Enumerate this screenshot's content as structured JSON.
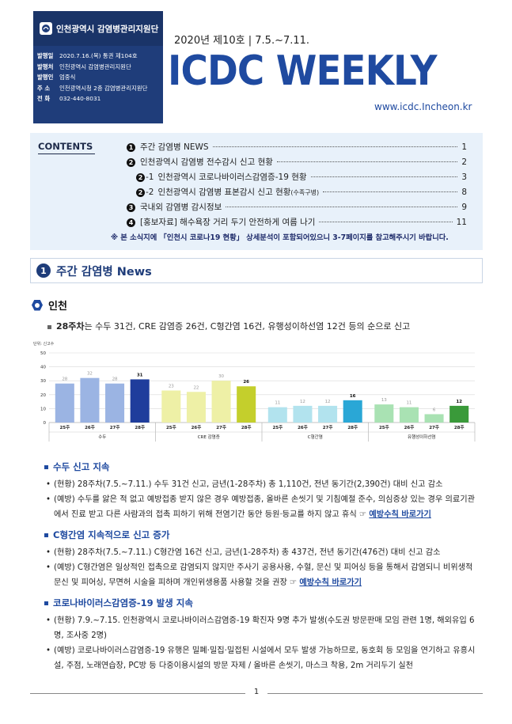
{
  "header": {
    "org_name": "인천광역시 감염병관리지원단",
    "meta": [
      {
        "k": "발행일",
        "v": "2020.7.16.(목) 통권 제104호"
      },
      {
        "k": "발행처",
        "v": "인천광역시 감염병관리지원단"
      },
      {
        "k": "발행인",
        "v": "엄중식"
      },
      {
        "k": "주  소",
        "v": "인천광역시청 2층 감염병관리지원단"
      },
      {
        "k": "전  화",
        "v": "032-440-8031"
      }
    ],
    "issue": "2020년 제10호 | 7.5.~7.11.",
    "title": "ICDC WEEKLY",
    "url": "www.icdc.Incheon.kr"
  },
  "contents": {
    "label": "CONTENTS",
    "items": [
      {
        "num": "1",
        "text": "주간 감염병 NEWS",
        "page": "1"
      },
      {
        "num": "2",
        "text": "인천광역시 감염병 전수감시 신고 현황",
        "page": "2"
      },
      {
        "num": "2",
        "sub": "-1",
        "text": "인천광역시 코로나바이러스감염증-19 현황",
        "page": "3"
      },
      {
        "num": "2",
        "sub": "-2",
        "text": "인천광역시 감염병 표본감시 신고 현황",
        "small": "(수족구병)",
        "page": "8"
      },
      {
        "num": "3",
        "text": "국내외 감염병 감시정보",
        "page": "9"
      },
      {
        "num": "4",
        "text": "[홍보자료] 해수욕장 거리 두기 안전하게 여름 나기",
        "page": "11"
      }
    ],
    "note": "※ 본 소식지에 「인천시 코로나19 현황」 상세분석이 포함되어있으니 3-7페이지를 참고해주시기 바랍니다."
  },
  "section1": {
    "num": "1",
    "title": "주간 감염병 News",
    "region": "인천",
    "summary_bold": "28주차",
    "summary_rest": "는 수두 31건, CRE 감염증 26건, C형간염 16건, 유행성이하선염 12건 등의 순으로 신고"
  },
  "chart_data": {
    "type": "bar",
    "ylabel": "단위: 신고수",
    "ylim": [
      0,
      50
    ],
    "yticks": [
      0,
      10,
      20,
      30,
      40,
      50
    ],
    "groups": [
      {
        "name": "수두",
        "categories": [
          "25주",
          "26주",
          "27주",
          "28주"
        ],
        "values": [
          28,
          32,
          28,
          31
        ],
        "color": "#9bb4e3",
        "highlight": "#1f3d9c"
      },
      {
        "name": "CRE 감염증",
        "categories": [
          "25주",
          "26주",
          "27주",
          "28주"
        ],
        "values": [
          23,
          22,
          30,
          26
        ],
        "color": "#eef0a6",
        "highlight": "#c4cf2c"
      },
      {
        "name": "C형간염",
        "categories": [
          "25주",
          "26주",
          "27주",
          "28주"
        ],
        "values": [
          11,
          12,
          12,
          16
        ],
        "color": "#b2e3ee",
        "highlight": "#2aa7d6"
      },
      {
        "name": "유행성이하선염",
        "categories": [
          "25주",
          "26주",
          "27주",
          "28주"
        ],
        "values": [
          13,
          11,
          6,
          12
        ],
        "color": "#a9e2b3",
        "highlight": "#3a9a3a"
      }
    ]
  },
  "blocks": [
    {
      "heading": "수두 신고 지속",
      "items": [
        {
          "text": "(현황) 28주차(7.5.~7.11.) 수두 31건 신고, 금년(1-28주차) 총 1,110건, 전년 동기간(2,390건) 대비 신고 감소"
        },
        {
          "text": "(예방) 수두를 앓은 적 없고 예방접종 받지 않은 경우 예방접종, 올바른 손씻기 및 기침예절 준수, 의심증상 있는 경우 의료기관에서 진료 받고 다른 사람과의 접촉 피하기 위해 전염기간 동안 등원·등교를 하지 않고 휴식 ☞ ",
          "link": "예방수칙 바로가기"
        }
      ]
    },
    {
      "heading": "C형간염 지속적으로 신고 증가",
      "items": [
        {
          "text": "(현황) 28주차(7.5.~7.11.) C형간염 16건 신고, 금년(1-28주차) 총 437건, 전년 동기간(476건) 대비 신고 감소"
        },
        {
          "text": "(예방) C형간염은 일상적인 접촉으로 감염되지 않지만 주사기 공용사용, 수혈, 문신 및 피어싱 등을 통해서 감염되니 비위생적 문신 및 피어싱, 무면허 시술을 피하며 개인위생용품 사용할 것을 권장 ☞ ",
          "link": "예방수칙 바로가기"
        }
      ]
    },
    {
      "heading": "코로나바이러스감염증-19 발생 지속",
      "items": [
        {
          "text": "(현황) 7.9.~7.15. 인천광역시 코로나바이러스감염증-19 확진자 9명 추가 발생(수도권 방문판매 모임 관련 1명, 해외유입 6명, 조사중 2명)"
        },
        {
          "text": "(예방) 코로나바이러스감염증-19 유행은 밀폐·밀집·밀접된 시설에서 모두 발생 가능하므로, 동호회 등 모임을 연기하고 유흥시설, 주점, 노래연습장, PC방 등 다중이용시설의 방문 자제 / 올바른 손씻기, 마스크 착용, 2m 거리두기 실천"
        }
      ]
    }
  ],
  "footer": {
    "page": "1"
  }
}
